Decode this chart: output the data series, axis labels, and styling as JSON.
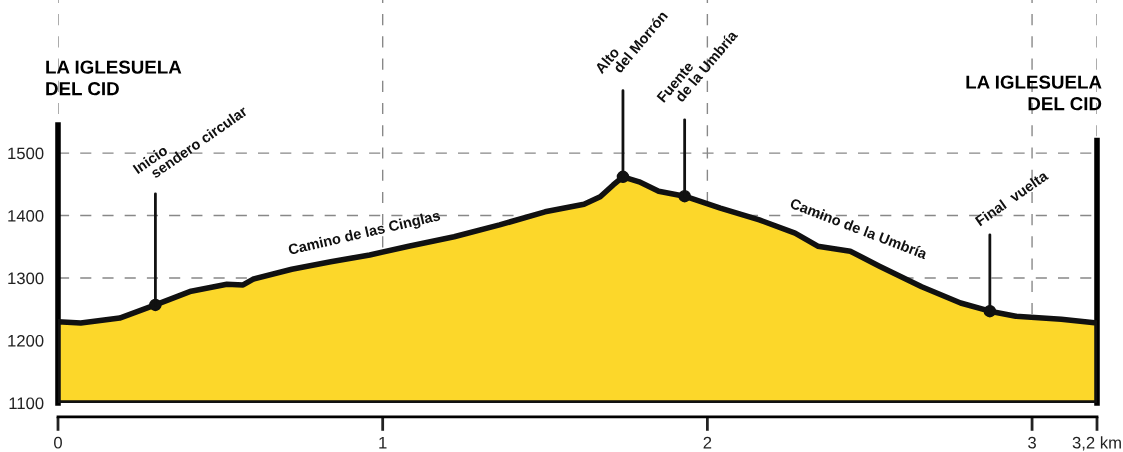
{
  "chart_data": {
    "type": "area",
    "x": [
      0,
      0.07,
      0.19,
      0.3,
      0.41,
      0.52,
      0.57,
      0.6,
      0.72,
      0.84,
      0.96,
      1.08,
      1.22,
      1.36,
      1.5,
      1.62,
      1.67,
      1.71,
      1.74,
      1.79,
      1.85,
      1.93,
      2.04,
      2.16,
      2.27,
      2.34,
      2.44,
      2.53,
      2.66,
      2.78,
      2.87,
      2.95,
      3.09,
      3.2
    ],
    "series": [
      {
        "color": "#fcd72a",
        "values": [
          1230,
          1228,
          1236,
          1257,
          1279,
          1290,
          1289,
          1298,
          1314,
          1326,
          1337,
          1351,
          1366,
          1385,
          1406,
          1418,
          1430,
          1449,
          1462,
          1454,
          1439,
          1431,
          1412,
          1393,
          1372,
          1351,
          1343,
          1319,
          1286,
          1260,
          1247,
          1239,
          1234,
          1228
        ]
      }
    ],
    "xlim": [
      0,
      3.2
    ],
    "xticks": [
      0,
      1,
      2,
      3,
      {
        "value": 3.2,
        "label": "3,2 km"
      }
    ],
    "ylim": [
      1100,
      1745
    ],
    "yticks": [
      1100,
      1200,
      1300,
      1400,
      1500
    ],
    "grid": true,
    "annotations": [
      "LA IGLESUELA\nDEL CID",
      "LA IGLESUELA\nDEL CID",
      {
        "text": "Inicio\n   sendero circular",
        "x": 0.3,
        "y": 1257
      },
      {
        "text": "Alto\n   del Morrón",
        "x": 1.74,
        "y": 1462
      },
      {
        "text": "Fuente\n   de la Umbría",
        "x": 1.93,
        "y": 1431
      },
      {
        "text": "Final  vuelta",
        "x": 2.87,
        "y": 1247
      },
      "Camino de las Cinglas",
      "Camino de la Umbría"
    ]
  }
}
